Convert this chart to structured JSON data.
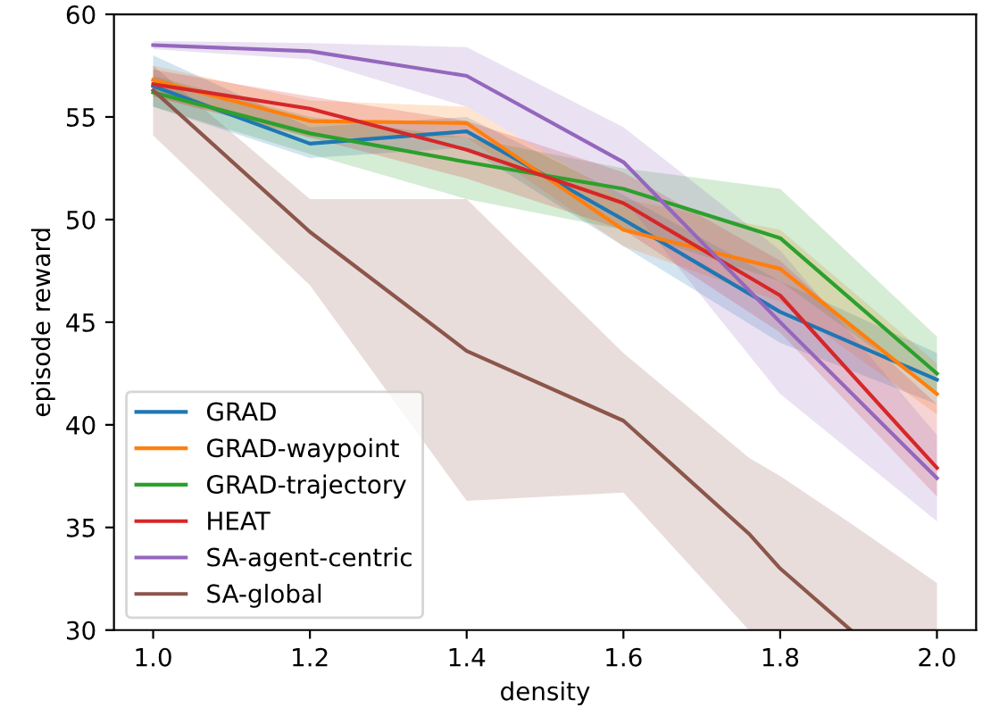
{
  "chart_data": {
    "type": "line",
    "xlabel": "density",
    "ylabel": "episode reward",
    "x": [
      1.0,
      1.2,
      1.4,
      1.6,
      1.8,
      2.0
    ],
    "xlim": [
      0.95,
      2.05
    ],
    "ylim": [
      30,
      60
    ],
    "xticks": [
      {
        "value": 1.0,
        "label": "1.0"
      },
      {
        "value": 1.2,
        "label": "1.2"
      },
      {
        "value": 1.4,
        "label": "1.4"
      },
      {
        "value": 1.6,
        "label": "1.6"
      },
      {
        "value": 1.8,
        "label": "1.8"
      },
      {
        "value": 2.0,
        "label": "2.0"
      }
    ],
    "yticks": [
      30,
      35,
      40,
      45,
      50,
      55,
      60
    ],
    "grid": false,
    "legend": "bottom left",
    "marker": "none",
    "line_style": "solid",
    "series": [
      {
        "name": "GRAD",
        "color": "#1f77b4",
        "values": [
          56.5,
          53.7,
          54.3,
          50.0,
          45.5,
          42.2
        ],
        "lower": [
          55.5,
          53.0,
          53.5,
          48.7,
          44.0,
          41.0
        ],
        "upper": [
          58.0,
          54.5,
          55.0,
          51.2,
          47.0,
          43.5
        ]
      },
      {
        "name": "GRAD-waypoint",
        "color": "#ff7f0e",
        "values": [
          56.8,
          54.8,
          54.7,
          49.5,
          47.6,
          41.5
        ],
        "lower": [
          56.0,
          54.0,
          54.0,
          48.7,
          46.0,
          40.5
        ],
        "upper": [
          57.5,
          55.8,
          55.5,
          51.0,
          49.5,
          43.0
        ]
      },
      {
        "name": "GRAD-trajectory",
        "color": "#2ca02c",
        "values": [
          56.2,
          54.2,
          52.8,
          51.5,
          49.1,
          42.5
        ],
        "lower": [
          55.5,
          53.2,
          51.0,
          49.5,
          47.0,
          41.5
        ],
        "upper": [
          57.0,
          55.0,
          54.0,
          52.5,
          51.5,
          44.3
        ]
      },
      {
        "name": "HEAT",
        "color": "#d62728",
        "values": [
          56.6,
          55.4,
          53.4,
          50.8,
          46.3,
          37.9
        ],
        "lower": [
          56.0,
          54.0,
          52.0,
          49.5,
          44.5,
          36.5
        ],
        "upper": [
          57.3,
          56.0,
          54.8,
          52.3,
          48.0,
          41.0
        ]
      },
      {
        "name": "SA-agent-centric",
        "color": "#9467bd",
        "values": [
          58.5,
          58.2,
          57.0,
          52.8,
          45.0,
          37.4
        ],
        "lower": [
          58.3,
          57.8,
          55.5,
          51.0,
          41.5,
          35.3
        ],
        "upper": [
          58.7,
          58.6,
          58.4,
          54.5,
          48.5,
          39.5
        ]
      },
      {
        "name": "SA-global",
        "color": "#8c564b",
        "x": [
          1.0,
          1.2,
          1.4,
          1.6,
          1.76,
          1.8,
          1.89,
          2.0
        ],
        "values": [
          56.3,
          49.4,
          43.6,
          40.2,
          34.7,
          33.0,
          30.0,
          null
        ],
        "lower": [
          54.1,
          46.8,
          36.3,
          36.7,
          30.0,
          30.0,
          30.0,
          30.0
        ],
        "upper": [
          57.5,
          51.0,
          51.0,
          43.5,
          38.4,
          37.5,
          35.2,
          32.3
        ]
      }
    ]
  }
}
